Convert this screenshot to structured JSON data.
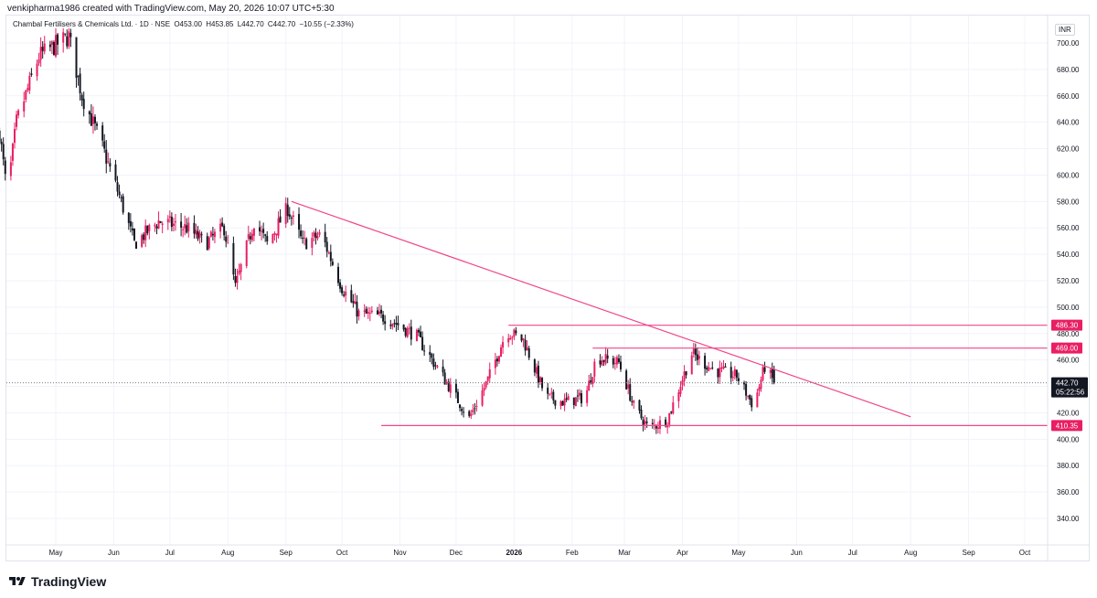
{
  "header": {
    "credit": "venkipharma1986 created with TradingView.com, May 20, 2026 10:07 UTC+5:30"
  },
  "legend": {
    "symbol": "Chambal Fertilisers & Chemicals Ltd.",
    "interval": "1D",
    "exchange": "NSE",
    "open": "O453.00",
    "high": "H453.85",
    "low": "L442.70",
    "close": "C442.70",
    "change": "−10.55 (−2.33%)"
  },
  "currency": "INR",
  "footer": {
    "brand": "TradingView"
  },
  "colors": {
    "up": "#e91e63",
    "down": "#131722",
    "line": "#f0468a",
    "label": "#e91e63"
  },
  "chart_data": {
    "type": "candlestick",
    "ylim": [
      326,
      716
    ],
    "y_ticks": [
      "700.00",
      "680.00",
      "660.00",
      "640.00",
      "620.00",
      "600.00",
      "580.00",
      "560.00",
      "540.00",
      "520.00",
      "500.00",
      "480.00",
      "460.00",
      "440.00",
      "420.00",
      "400.00",
      "380.00",
      "360.00",
      "340.00"
    ],
    "x_ticks": [
      {
        "label": "May",
        "date": "2025-05-01"
      },
      {
        "label": "Jun",
        "date": "2025-06-01"
      },
      {
        "label": "Jul",
        "date": "2025-07-01"
      },
      {
        "label": "Aug",
        "date": "2025-08-01"
      },
      {
        "label": "Sep",
        "date": "2025-09-01"
      },
      {
        "label": "Oct",
        "date": "2025-10-01"
      },
      {
        "label": "Nov",
        "date": "2025-11-01"
      },
      {
        "label": "Dec",
        "date": "2025-12-01"
      },
      {
        "label": "2026",
        "date": "2026-01-01",
        "bold": true
      },
      {
        "label": "Feb",
        "date": "2026-02-01"
      },
      {
        "label": "Mar",
        "date": "2026-03-01"
      },
      {
        "label": "Apr",
        "date": "2026-04-01"
      },
      {
        "label": "May",
        "date": "2026-05-01"
      },
      {
        "label": "Jun",
        "date": "2026-06-01"
      },
      {
        "label": "Jul",
        "date": "2026-07-01"
      },
      {
        "label": "Aug",
        "date": "2026-08-01"
      },
      {
        "label": "Sep",
        "date": "2026-09-01"
      },
      {
        "label": "Oct",
        "date": "2026-10-01"
      }
    ],
    "anchors": [
      {
        "date": "2025-04-01",
        "close": 632
      },
      {
        "date": "2025-04-05",
        "close": 585
      },
      {
        "date": "2025-04-10",
        "close": 640
      },
      {
        "date": "2025-04-22",
        "close": 690
      },
      {
        "date": "2025-05-08",
        "close": 705
      },
      {
        "date": "2025-05-15",
        "close": 660
      },
      {
        "date": "2025-05-25",
        "close": 625
      },
      {
        "date": "2025-06-05",
        "close": 580
      },
      {
        "date": "2025-06-12",
        "close": 548
      },
      {
        "date": "2025-06-25",
        "close": 565
      },
      {
        "date": "2025-07-10",
        "close": 560
      },
      {
        "date": "2025-07-20",
        "close": 548
      },
      {
        "date": "2025-07-30",
        "close": 560
      },
      {
        "date": "2025-08-05",
        "close": 515
      },
      {
        "date": "2025-08-15",
        "close": 565
      },
      {
        "date": "2025-08-22",
        "close": 548
      },
      {
        "date": "2025-09-02",
        "close": 575
      },
      {
        "date": "2025-09-10",
        "close": 548
      },
      {
        "date": "2025-09-20",
        "close": 555
      },
      {
        "date": "2025-10-01",
        "close": 515
      },
      {
        "date": "2025-10-10",
        "close": 495
      },
      {
        "date": "2025-10-25",
        "close": 492
      },
      {
        "date": "2025-11-10",
        "close": 478
      },
      {
        "date": "2025-11-25",
        "close": 445
      },
      {
        "date": "2025-12-08",
        "close": 416
      },
      {
        "date": "2025-12-18",
        "close": 445
      },
      {
        "date": "2025-12-28",
        "close": 482
      },
      {
        "date": "2026-01-06",
        "close": 475
      },
      {
        "date": "2026-01-18",
        "close": 432
      },
      {
        "date": "2026-01-28",
        "close": 428
      },
      {
        "date": "2026-02-08",
        "close": 432
      },
      {
        "date": "2026-02-14",
        "close": 462
      },
      {
        "date": "2026-02-26",
        "close": 458
      },
      {
        "date": "2026-03-06",
        "close": 425
      },
      {
        "date": "2026-03-14",
        "close": 408
      },
      {
        "date": "2026-03-24",
        "close": 415
      },
      {
        "date": "2026-04-06",
        "close": 465
      },
      {
        "date": "2026-04-18",
        "close": 452
      },
      {
        "date": "2026-04-30",
        "close": 448
      },
      {
        "date": "2026-05-09",
        "close": 425
      },
      {
        "date": "2026-05-15",
        "close": 455
      },
      {
        "date": "2026-05-20",
        "close": 442.7
      }
    ],
    "last_candle": {
      "date": "2026-05-20",
      "open": 453.0,
      "high": 453.85,
      "low": 442.7,
      "close": 442.7
    },
    "horizontal_levels": [
      {
        "value": 486.3,
        "label": "486.30",
        "from": "2025-12-29",
        "to": "2026-10-31"
      },
      {
        "value": 469.0,
        "label": "469.00",
        "from": "2026-02-12",
        "to": "2026-10-31"
      },
      {
        "value": 410.35,
        "label": "410.35",
        "from": "2025-10-22",
        "to": "2026-10-31"
      }
    ],
    "trendline": {
      "from": {
        "date": "2025-09-04",
        "value": 580
      },
      "to": {
        "date": "2026-08-01",
        "value": 417
      }
    },
    "last_price": {
      "value": 442.7,
      "label": "442.70",
      "countdown": "05:22:56"
    }
  }
}
